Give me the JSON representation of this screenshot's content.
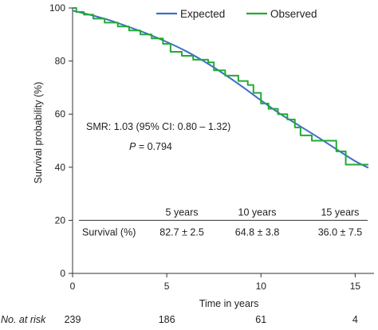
{
  "chart_data": {
    "type": "line",
    "title": "",
    "xlabel": "Time in years",
    "ylabel": "Survival probability (%)",
    "xlim": [
      0,
      16
    ],
    "ylim": [
      0,
      100
    ],
    "x_ticks": [
      0,
      5,
      10,
      15
    ],
    "y_ticks": [
      0,
      20,
      40,
      60,
      80,
      100
    ],
    "grid": false,
    "legend_position": "top-right",
    "series": [
      {
        "name": "Expected",
        "color": "#3d6fc4",
        "style": "smooth",
        "x": [
          0,
          1,
          2,
          3,
          4,
          5,
          6,
          7,
          8,
          9,
          10,
          11,
          12,
          13,
          14,
          15,
          15.7
        ],
        "y": [
          99,
          97.3,
          95.3,
          92.8,
          90.2,
          87.2,
          83.8,
          79.8,
          75.3,
          70.4,
          65.2,
          60.2,
          55.8,
          51.4,
          46.8,
          42.3,
          39.8
        ]
      },
      {
        "name": "Observed",
        "color": "#22aa33",
        "style": "step",
        "x": [
          0,
          0.2,
          0.6,
          1.1,
          1.7,
          2.4,
          3.0,
          3.6,
          4.2,
          4.8,
          5.2,
          5.8,
          6.4,
          7.2,
          7.5,
          8.1,
          8.8,
          9.3,
          9.6,
          10.0,
          10.4,
          10.9,
          11.4,
          11.8,
          12.1,
          12.7,
          14.0,
          14.5,
          15.7
        ],
        "y": [
          100,
          98.5,
          97.5,
          96.0,
          94.5,
          93.0,
          91.5,
          90.0,
          88.5,
          86.5,
          83.5,
          82.0,
          80.5,
          79.5,
          76.5,
          74.5,
          72.5,
          71.0,
          68.0,
          64.0,
          62.0,
          60.0,
          58.0,
          55.0,
          52.0,
          50.0,
          46.0,
          41.0,
          41.0
        ]
      }
    ],
    "annotations": {
      "smr": "SMR: 1.03 (95% CI: 0.80 – 1.32)",
      "p_prefix": "P",
      "p_suffix": " = 0.794"
    },
    "survival_table": {
      "row_label": "Survival (%)",
      "columns": [
        "5 years",
        "10 years",
        "15 years"
      ],
      "values": [
        "82.7 ± 2.5",
        "64.8 ± 3.8",
        "36.0 ± 7.5"
      ]
    },
    "at_risk": {
      "label": "No. at risk",
      "values": [
        {
          "time": 0,
          "n": "239"
        },
        {
          "time": 5,
          "n": "186"
        },
        {
          "time": 10,
          "n": "61"
        },
        {
          "time": 15,
          "n": "4"
        }
      ]
    }
  }
}
